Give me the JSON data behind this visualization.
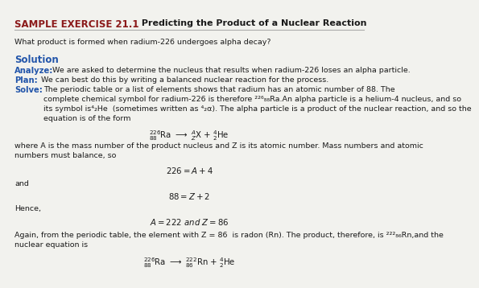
{
  "title_bold": "SAMPLE EXERCISE 21.1",
  "title_normal": " Predicting the Product of a Nuclear Reaction",
  "background_color": "#f2f2ee",
  "text_color": "#1a1a1a",
  "blue_color": "#2255aa",
  "red_color": "#8b1a1a",
  "line_color": "#aaaaaa",
  "question": "What product is formed when radium-226 undergoes alpha decay?",
  "solution_label": "Solution",
  "analyze_label": "Analyze:",
  "analyze_text": " We are asked to determine the nucleus that results when radium-226 loses an alpha particle.",
  "plan_label": "Plan:",
  "plan_text": " We can best do this by writing a balanced nuclear reaction for the process.",
  "solve_label": "Solve:",
  "solve_body": "The periodic table or a list of elements shows that radium has an atomic number of 88. The\ncomplete chemical symbol for radium-226 is therefore ²²⁶₈₈Ra.An alpha particle is a helium-4 nucleus, and so\nits symbol is⁴₂He  (sometimes written as ⁴₂α). The alpha particle is a product of the nuclear reaction, and so the\nequation is of the form",
  "where_text": "where A is the mass number of the product nucleus and Z is its atomic number. Mass numbers and atomic\nnumbers must balance, so",
  "and_text": "and",
  "hence_text": "Hence,",
  "final_text": "Again, from the periodic table, the element with Z = 86  is radon (Rn). The product, therefore, is ²²²₈₆Rn,and the\nnuclear equation is"
}
